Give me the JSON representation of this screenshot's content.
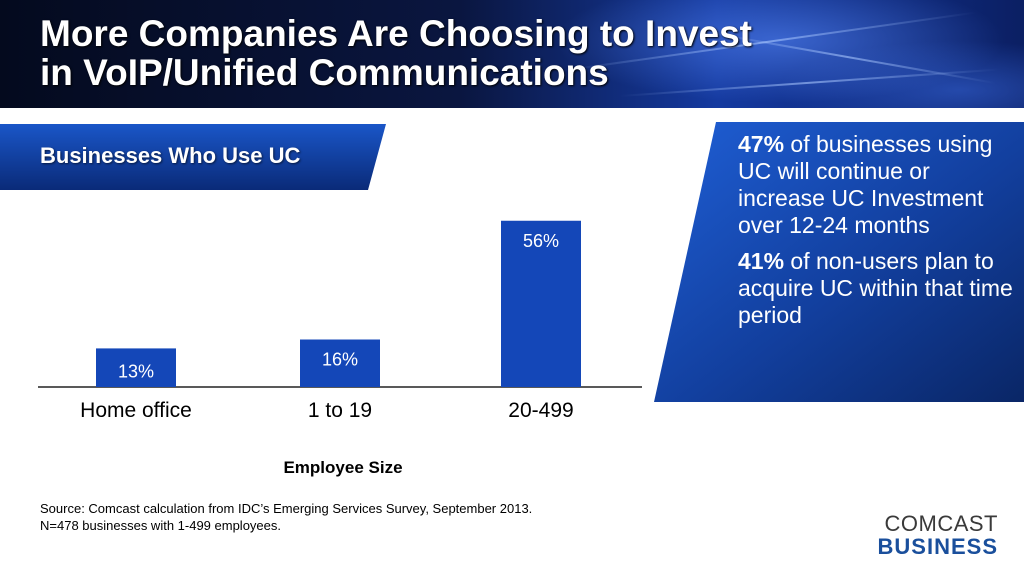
{
  "header": {
    "title_line1": "More Companies Are Choosing to Invest",
    "title_line2": "in VoIP/Unified Communications"
  },
  "chart_banner": {
    "label": "Businesses Who Use UC"
  },
  "chart_data": {
    "type": "bar",
    "categories": [
      "Home office",
      "1 to 19",
      "20-499"
    ],
    "values": [
      13,
      16,
      56
    ],
    "value_labels": [
      "13%",
      "16%",
      "56%"
    ],
    "xlabel": "Employee Size",
    "ylabel": "",
    "ylim": [
      0,
      64
    ],
    "bar_color": "#1447b8",
    "grid": false
  },
  "callout": {
    "stat1_value": "47%",
    "stat1_text": " of businesses using UC will continue or increase UC Investment over 12-24 months",
    "stat2_value": "41%",
    "stat2_text": " of non-users plan to acquire UC within that time period"
  },
  "source": {
    "line1": "Source: Comcast calculation from IDC’s Emerging Services Survey, September 2013.",
    "line2": "N=478 businesses with 1-499 employees."
  },
  "logo": {
    "line1": "COMCAST",
    "line2": "BUSINESS"
  },
  "colors": {
    "accent_blue": "#1447b8",
    "dark_navy": "#0a1f5c"
  }
}
